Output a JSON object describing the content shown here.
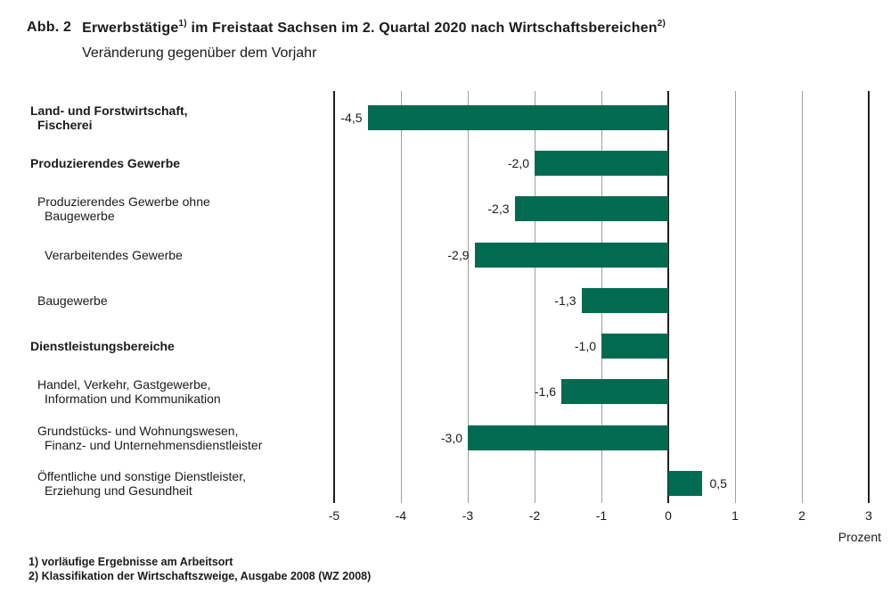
{
  "header": {
    "label": "Abb. 2",
    "title_main": "Erwerbstätige",
    "title_sup1": "1)",
    "title_rest": " im Freistaat Sachsen im 2. Quartal 2020 nach Wirtschaftsbereichen",
    "title_sup2": "2)",
    "subtitle": "Veränderung gegenüber dem Vorjahr"
  },
  "chart_data": {
    "type": "bar",
    "orientation": "horizontal",
    "title": "Erwerbstätige im Freistaat Sachsen im 2. Quartal 2020 nach Wirtschaftsbereichen",
    "subtitle": "Veränderung gegenüber dem Vorjahr",
    "xlabel": "Prozent",
    "ylabel": "",
    "xlim": [
      -5,
      3
    ],
    "x_ticks": [
      -5,
      -4,
      -3,
      -2,
      -1,
      0,
      1,
      2,
      3
    ],
    "grid": true,
    "bar_color": "#006b50",
    "categories": [
      {
        "lines": [
          "Land- und Forstwirtschaft,",
          "Fischerei"
        ],
        "bold": true,
        "indent": 0,
        "value": -4.5,
        "value_label": "-4,5"
      },
      {
        "lines": [
          "Produzierendes Gewerbe"
        ],
        "bold": true,
        "indent": 0,
        "value": -2.0,
        "value_label": "-2,0"
      },
      {
        "lines": [
          "Produzierendes Gewerbe ohne",
          "Baugewerbe"
        ],
        "bold": false,
        "indent": 1,
        "value": -2.3,
        "value_label": "-2,3"
      },
      {
        "lines": [
          "Verarbeitendes Gewerbe"
        ],
        "bold": false,
        "indent": 2,
        "value": -2.9,
        "value_label": "-2,9"
      },
      {
        "lines": [
          "Baugewerbe"
        ],
        "bold": false,
        "indent": 1,
        "value": -1.3,
        "value_label": "-1,3"
      },
      {
        "lines": [
          "Dienstleistungsbereiche"
        ],
        "bold": true,
        "indent": 0,
        "value": -1.0,
        "value_label": "-1,0"
      },
      {
        "lines": [
          "Handel, Verkehr, Gastgewerbe,",
          "Information und Kommunikation"
        ],
        "bold": false,
        "indent": 1,
        "value": -1.6,
        "value_label": "-1,6"
      },
      {
        "lines": [
          "Grundstücks- und Wohnungswesen,",
          "Finanz- und Unternehmensdienstleister"
        ],
        "bold": false,
        "indent": 1,
        "value": -3.0,
        "value_label": "-3,0"
      },
      {
        "lines": [
          "Öffentliche und sonstige Dienstleister,",
          "Erziehung und Gesundheit"
        ],
        "bold": false,
        "indent": 1,
        "value": 0.5,
        "value_label": "0,5"
      }
    ]
  },
  "footnotes": [
    "1) vorläufige Ergebnisse am Arbeitsort",
    "2) Klassifikation der Wirtschaftszweige, Ausgabe 2008 (WZ 2008)"
  ]
}
